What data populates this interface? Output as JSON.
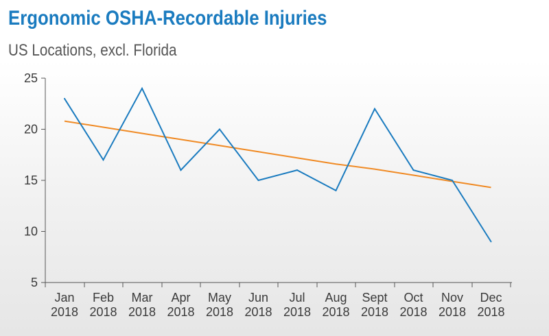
{
  "chart_data": {
    "type": "line",
    "title": "Ergonomic OSHA-Recordable Injuries",
    "subtitle": "US Locations, excl. Florida",
    "categories": [
      [
        "Jan",
        "2018"
      ],
      [
        "Feb",
        "2018"
      ],
      [
        "Mar",
        "2018"
      ],
      [
        "Apr",
        "2018"
      ],
      [
        "May",
        "2018"
      ],
      [
        "Jun",
        "2018"
      ],
      [
        "Jul",
        "2018"
      ],
      [
        "Aug",
        "2018"
      ],
      [
        "Sept",
        "2018"
      ],
      [
        "Oct",
        "2018"
      ],
      [
        "Nov",
        "2018"
      ],
      [
        "Dec",
        "2018"
      ]
    ],
    "series": [
      {
        "type": "line",
        "color": "#1a7bbf",
        "values": [
          23,
          17,
          24,
          16,
          20,
          15,
          16,
          14,
          22,
          16,
          15,
          9
        ]
      },
      {
        "type": "trendline",
        "color": "#f08a24",
        "values": [
          20.8,
          20.2,
          19.6,
          19.0,
          18.4,
          17.8,
          17.2,
          16.6,
          16.1,
          15.5,
          14.9,
          14.3
        ]
      }
    ],
    "ylim": [
      5,
      25
    ],
    "yticks": [
      5,
      10,
      15,
      20,
      25
    ],
    "grid": false,
    "legend": "none"
  }
}
